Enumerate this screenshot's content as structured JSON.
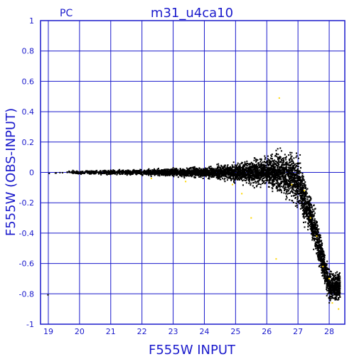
{
  "chart_data": {
    "type": "scatter",
    "title": "m31_u4ca10",
    "corner_label": "PC",
    "xlabel": "F555W INPUT",
    "ylabel": "F555W (OBS-INPUT)",
    "xlim": [
      18.75,
      28.5
    ],
    "ylim": [
      -1,
      1
    ],
    "x_ticks": [
      "19",
      "20",
      "21",
      "22",
      "23",
      "24",
      "25",
      "26",
      "27",
      "28"
    ],
    "y_ticks": [
      "1",
      "0.8",
      "0.6",
      "0.4",
      "0.2",
      "0",
      "-0.2",
      "-0.4",
      "-0.6",
      "-0.8",
      "-1"
    ],
    "grid": true,
    "series": [
      {
        "marker_color": "#000000",
        "description_points": "dense band of stars near zero offset widening toward faint magnitudes",
        "envelope": [
          {
            "x": 19.0,
            "y_center": 0.0,
            "y_spread": 0.02
          },
          {
            "x": 20.0,
            "y_center": 0.0,
            "y_spread": 0.02
          },
          {
            "x": 21.0,
            "y_center": 0.0,
            "y_spread": 0.025
          },
          {
            "x": 22.0,
            "y_center": 0.0,
            "y_spread": 0.03
          },
          {
            "x": 23.0,
            "y_center": 0.0,
            "y_spread": 0.04
          },
          {
            "x": 24.0,
            "y_center": 0.0,
            "y_spread": 0.05
          },
          {
            "x": 25.0,
            "y_center": 0.0,
            "y_spread": 0.09
          },
          {
            "x": 26.0,
            "y_center": 0.0,
            "y_spread": 0.15
          },
          {
            "x": 26.5,
            "y_center": 0.0,
            "y_spread": 0.22
          },
          {
            "x": 27.0,
            "y_center": -0.05,
            "y_spread": 0.26
          },
          {
            "x": 27.5,
            "y_center": -0.35,
            "y_spread": 0.2
          },
          {
            "x": 28.0,
            "y_center": -0.75,
            "y_spread": 0.15
          }
        ]
      },
      {
        "marker_color": "#ffd700",
        "points": [
          {
            "x": 22.3,
            "y": -0.04
          },
          {
            "x": 23.4,
            "y": -0.06
          },
          {
            "x": 24.9,
            "y": -0.08
          },
          {
            "x": 25.2,
            "y": -0.14
          },
          {
            "x": 25.5,
            "y": -0.3
          },
          {
            "x": 26.3,
            "y": -0.57
          },
          {
            "x": 26.4,
            "y": 0.49
          },
          {
            "x": 26.8,
            "y": -0.08
          },
          {
            "x": 27.2,
            "y": -0.12
          },
          {
            "x": 27.4,
            "y": -0.3
          },
          {
            "x": 27.6,
            "y": -0.42
          },
          {
            "x": 27.8,
            "y": -0.62
          },
          {
            "x": 28.0,
            "y": -0.7
          },
          {
            "x": 28.1,
            "y": -0.86
          },
          {
            "x": 28.3,
            "y": -0.9
          }
        ]
      }
    ]
  },
  "colors": {
    "axis": "#1a1acc",
    "grid": "#1a1acc",
    "points": "#000000",
    "highlight": "#ffd700"
  }
}
